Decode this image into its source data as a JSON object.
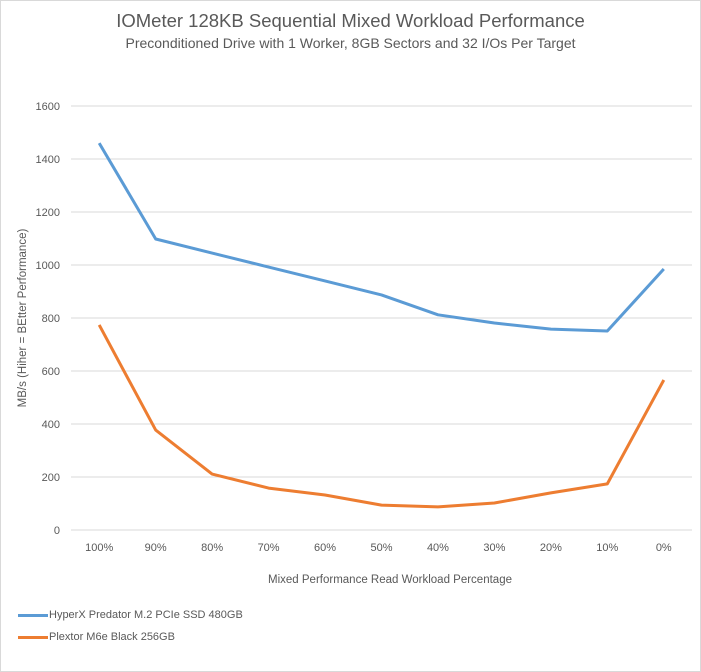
{
  "chart_data": {
    "type": "line",
    "title": "IOMeter 128KB Sequential Mixed Workload Performance",
    "subtitle": "Preconditioned  Drive with 1 Worker,  8GB Sectors and 32 I/Os Per Target",
    "xlabel": "Mixed Performance Read Workload Percentage",
    "ylabel": "MB/s (Hiher = BEtter  Performance)",
    "ylim": [
      0,
      1600
    ],
    "yticks": [
      0,
      200,
      400,
      600,
      800,
      1000,
      1200,
      1400,
      1600
    ],
    "grid": true,
    "legend_position": "bottom-left",
    "categories": [
      "100%",
      "90%",
      "80%",
      "70%",
      "60%",
      "50%",
      "40%",
      "30%",
      "20%",
      "10%",
      "0%"
    ],
    "series": [
      {
        "name": "HyperX Predator M.2 PCIe SSD 480GB",
        "color": "#5b9bd5",
        "values": [
          1460,
          1098,
          1045,
          992,
          940,
          887,
          812,
          781,
          758,
          751,
          985
        ]
      },
      {
        "name": "Plextor M6e Black 256GB",
        "color": "#ed7d31",
        "values": [
          774,
          377,
          211,
          158,
          132,
          94,
          87,
          102,
          140,
          174,
          566
        ]
      }
    ]
  }
}
